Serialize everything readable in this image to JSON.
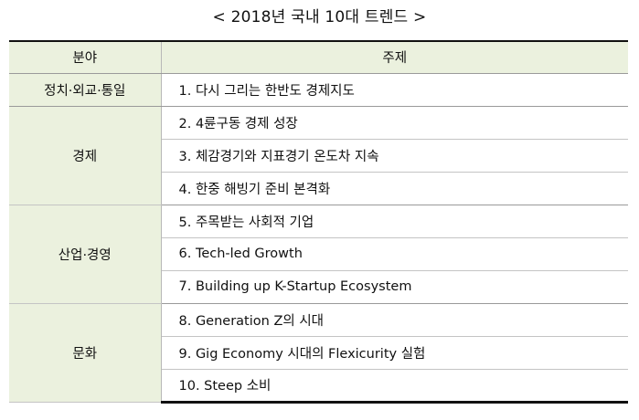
{
  "title": "< 2018년 국내 10대 트렌드 >",
  "headers": {
    "category": "분야",
    "topic": "주제"
  },
  "groups": [
    {
      "category": "정치·외교·통일",
      "topics": [
        "1. 다시 그리는 한반도 경제지도"
      ]
    },
    {
      "category": "경제",
      "topics": [
        "2. 4륜구동 경제 성장",
        "3. 체감경기와 지표경기 온도차 지속",
        "4. 한중 해빙기 준비 본격화"
      ]
    },
    {
      "category": "산업·경영",
      "topics": [
        "5. 주목받는 사회적 기업",
        "6. Tech-led Growth",
        "7. Building up K-Startup Ecosystem"
      ]
    },
    {
      "category": "문화",
      "topics": [
        "8. Generation Z의 시대",
        "9. Gig Economy 시대의 Flexicurity 실험",
        "10. Steep 소비"
      ]
    }
  ]
}
